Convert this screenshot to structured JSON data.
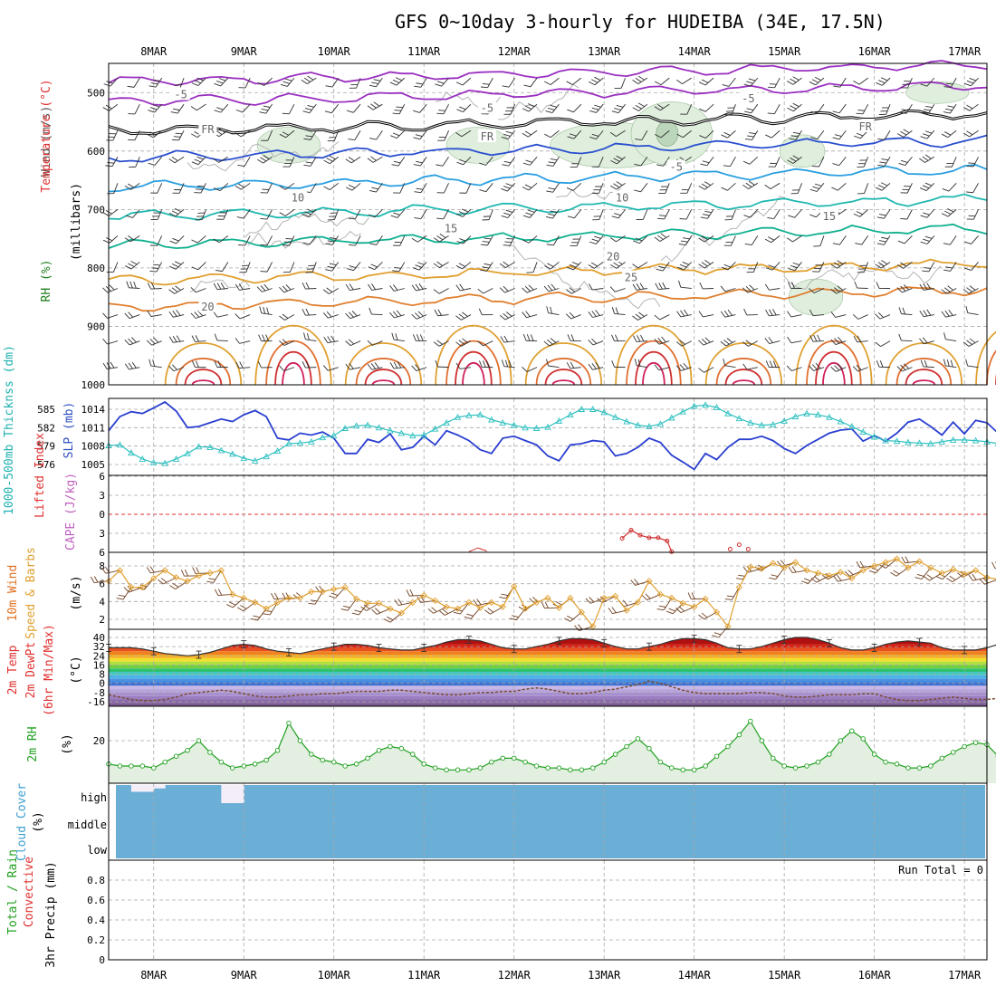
{
  "title": "GFS 0~10day 3-hourly for HUDEIBA (34E, 17.5N)",
  "date_labels": [
    "8MAR",
    "9MAR",
    "10MAR",
    "11MAR",
    "12MAR",
    "13MAR",
    "14MAR",
    "15MAR",
    "16MAR",
    "17MAR"
  ],
  "run_total_label": "Run Total = 0",
  "colors": {
    "wind_label": "#505050",
    "temperature_label": "#e03030",
    "rh_label": "#208020",
    "thickness_label": "#20b0b0",
    "slp_label": "#2040d0",
    "lifted_label": "#e03030",
    "cape_label": "#c060c0",
    "wind10_label": "#e07020",
    "speed_label": "#e0a030",
    "temp2m_label": "#e03030",
    "dewpt_label": "#e03030",
    "rh2m_label": "#20a020",
    "cloud_label": "#40a0d0",
    "precip_label": "#e03030",
    "cloud_fill": "#6baed6",
    "cloud_clear": "#f3eef8",
    "slp_line": "#2a3fd0",
    "thickness_line": "#30c0c0",
    "speed_line": "#e0a030",
    "rh_line": "#20a020",
    "rh_fill": "#e3efe0"
  },
  "panels": {
    "upper": {
      "label_wind": "Wind (m/s)",
      "label_temperature": "Temperature (°C)",
      "label_rh": "RH (%)",
      "ylabel": "(millibars)",
      "ticks": [
        "500",
        "600",
        "700",
        "800",
        "900",
        "1000"
      ],
      "isotherm_labels": [
        {
          "text": "-5",
          "p": 505,
          "day": 0.3
        },
        {
          "text": "-5",
          "p": 528,
          "day": 3.7
        },
        {
          "text": "-5",
          "p": 512,
          "day": 6.6
        },
        {
          "text": "FR",
          "p": 565,
          "day": 0.6
        },
        {
          "text": "FR",
          "p": 577,
          "day": 3.7
        },
        {
          "text": "FR",
          "p": 560,
          "day": 7.9
        },
        {
          "text": "-5",
          "p": 629,
          "day": 5.8
        },
        {
          "text": "10",
          "p": 682,
          "day": 1.6
        },
        {
          "text": "10",
          "p": 682,
          "day": 5.2
        },
        {
          "text": "15",
          "p": 734,
          "day": 3.3
        },
        {
          "text": "15",
          "p": 713,
          "day": 7.5
        },
        {
          "text": "20",
          "p": 782,
          "day": 5.1
        },
        {
          "text": "25",
          "p": 818,
          "day": 5.3
        },
        {
          "text": "20",
          "p": 868,
          "day": 0.6
        }
      ]
    },
    "thickness_slp": {
      "label_thickness": "1000-500mb Thicknss (dm)",
      "label_slp": "SLP (mb)",
      "left_ticks": [
        "585",
        "582",
        "579",
        "576"
      ],
      "right_ticks": [
        "1014",
        "1011",
        "1008",
        "1005"
      ]
    },
    "instability": {
      "label_lifted": "Lifted Index",
      "label_cape": "CAPE (J/kg)",
      "ticks": [
        "6",
        "3",
        "0",
        "3",
        "6"
      ]
    },
    "wind10": {
      "label_wind": "10m Wind",
      "label_speed": "Speed & Barbs",
      "label_unit": "(m/s)",
      "ticks": [
        "8",
        "6",
        "4",
        "2"
      ]
    },
    "temp2m": {
      "label_temp": "2m Temp",
      "label_dewpt": "2m DewPt",
      "label_minmax": "(6hr Min/Max)",
      "label_unit": "(°C)",
      "ticks": [
        "40",
        "32",
        "24",
        "16",
        "8",
        "0",
        "-8",
        "-16"
      ]
    },
    "rh2m": {
      "label": "2m RH",
      "label_unit": "(%)",
      "ticks": [
        "20"
      ]
    },
    "cloud": {
      "label": "Cloud Cover",
      "label_unit": "(%)",
      "levels": [
        "high",
        "middle",
        "low"
      ]
    },
    "precip": {
      "label_total": "Total / Rain",
      "label_convective": "Convective",
      "label_precip": "3hr Precip (mm)",
      "ticks": [
        "0.8",
        "0.6",
        "0.4",
        "0.2",
        "0"
      ]
    }
  },
  "chart_data": [
    {
      "type": "line",
      "title": "Sea level pressure and 1000-500mb thickness",
      "x_unit": "days from 8MAR 00Z (3-hourly steps)",
      "x_start": -0.5,
      "x_step": 0.125,
      "series": [
        {
          "name": "SLP (mb)",
          "values": [
            1010.5,
            1012.8,
            1013.6,
            1013.3,
            1014.2,
            1015.2,
            1013.7,
            1011.0,
            1011.2,
            1011.8,
            1012.4,
            1012.0,
            1013.1,
            1013.8,
            1012.8,
            1009.3,
            1009.0,
            1010.1,
            1009.8,
            1010.3,
            1009.3,
            1006.8,
            1006.8,
            1009.1,
            1008.6,
            1010.0,
            1007.4,
            1007.8,
            1009.6,
            1008.2,
            1010.5,
            1009.8,
            1008.9,
            1007.4,
            1006.8,
            1009.3,
            1009.6,
            1008.9,
            1008.2,
            1006.4,
            1005.6,
            1008.2,
            1008.4,
            1008.9,
            1008.7,
            1006.4,
            1006.8,
            1007.8,
            1009.3,
            1008.6,
            1006.5,
            1005.4,
            1004.2,
            1006.8,
            1005.8,
            1007.8,
            1009.1,
            1009.1,
            1009.6,
            1008.9,
            1007.6,
            1006.8,
            1008.1,
            1009.1,
            1010.1,
            1010.6,
            1010.8,
            1008.8,
            1009.7,
            1008.8,
            1010.1,
            1011.9,
            1012.4,
            1011.2,
            1009.8,
            1011.9,
            1010.0,
            1012.2,
            1011.8,
            1010.1,
            1010.6,
            1009.0,
            1010.8,
            1011.2
          ]
        },
        {
          "name": "1000-500mb Thickness (dm)",
          "values": [
            579.1,
            579.2,
            577.9,
            576.9,
            576.3,
            576.2,
            576.9,
            577.8,
            578.9,
            578.8,
            578.3,
            577.7,
            577.0,
            576.6,
            577.3,
            578.2,
            579.4,
            579.5,
            579.7,
            580.4,
            580.7,
            581.9,
            582.3,
            582.4,
            582.0,
            581.5,
            581.1,
            580.7,
            580.8,
            581.8,
            582.8,
            583.7,
            584.0,
            584.1,
            583.3,
            582.8,
            582.4,
            582.0,
            581.9,
            582.1,
            583.1,
            584.1,
            585.0,
            585.0,
            584.5,
            583.7,
            583.0,
            582.4,
            582.2,
            582.6,
            583.6,
            584.6,
            585.5,
            585.7,
            585.3,
            584.3,
            583.5,
            582.8,
            582.4,
            582.5,
            583.1,
            583.8,
            584.3,
            584.1,
            583.7,
            583.0,
            582.2,
            581.3,
            580.5,
            579.9,
            579.8,
            579.6,
            579.5,
            579.4,
            579.7,
            580.0,
            580.0,
            579.9,
            579.7,
            579.4,
            579.5,
            579.9,
            579.9,
            580.2
          ]
        }
      ]
    },
    {
      "type": "line",
      "title": "10m wind speed (m/s)",
      "x_unit": "days from 8MAR 00Z (3-hourly steps)",
      "x_start": -0.5,
      "x_step": 0.125,
      "series": [
        {
          "name": "Speed",
          "values": [
            6.3,
            7.5,
            5.6,
            5.6,
            6.6,
            7.5,
            6.7,
            6.3,
            6.9,
            7.2,
            7.5,
            4.8,
            4.4,
            3.9,
            3.2,
            3.9,
            4.4,
            4.4,
            5.1,
            5.1,
            5.4,
            5.6,
            4.3,
            3.8,
            3.8,
            3.2,
            2.7,
            3.9,
            4.7,
            4.1,
            3.4,
            3.2,
            3.9,
            3.3,
            3.9,
            3.4,
            5.7,
            3.2,
            3.9,
            4.4,
            3.3,
            4.4,
            2.8,
            1.2,
            4.4,
            4.6,
            3.0,
            3.9,
            6.3,
            4.8,
            4.4,
            3.8,
            3.4,
            4.3,
            2.8,
            1.2,
            5.6,
            7.9,
            7.7,
            8.3,
            7.8,
            8.4,
            7.5,
            7.2,
            6.9,
            7.3,
            6.6,
            7.5,
            8.0,
            8.4,
            8.8,
            7.8,
            8.5,
            7.8,
            7.2,
            7.6,
            7.1,
            7.5,
            6.7,
            6.5,
            7.8,
            7.3,
            8.0,
            6.2
          ]
        }
      ]
    },
    {
      "type": "line",
      "title": "2m temperature and dew point (°C)",
      "x_unit": "days from 8MAR 00Z (3-hourly steps)",
      "x_start": -0.5,
      "x_step": 0.125,
      "series": [
        {
          "name": "2m Temp",
          "values": [
            31,
            31,
            31,
            30,
            28,
            26,
            25,
            24,
            25,
            27,
            30,
            33,
            34,
            33,
            30,
            28,
            27,
            26,
            28,
            30,
            32,
            34,
            34,
            33,
            31,
            30,
            29,
            29,
            31,
            33,
            36,
            38,
            38,
            37,
            34,
            31,
            30,
            30,
            32,
            34,
            37,
            39,
            39,
            38,
            35,
            32,
            30,
            30,
            32,
            34,
            37,
            39,
            39,
            38,
            35,
            31,
            30,
            30,
            32,
            35,
            38,
            40,
            40,
            38,
            35,
            31,
            29,
            29,
            31,
            34,
            36,
            37,
            36,
            35,
            31,
            29,
            29,
            29,
            31,
            34,
            36,
            37,
            36,
            34
          ]
        },
        {
          "name": "2m DewPt",
          "values": [
            -10,
            -12,
            -14,
            -15,
            -15,
            -14,
            -12,
            -9,
            -8,
            -7,
            -6,
            -7,
            -9,
            -11,
            -12,
            -12,
            -11,
            -10,
            -10,
            -9,
            -9,
            -8,
            -7,
            -7,
            -7,
            -6,
            -6,
            -7,
            -8,
            -9,
            -10,
            -10,
            -9,
            -8,
            -8,
            -7,
            -7,
            -5,
            -4,
            -5,
            -7,
            -9,
            -9,
            -8,
            -6,
            -5,
            -3,
            -1,
            2,
            0,
            -3,
            -6,
            -8,
            -9,
            -9,
            -9,
            -9,
            -8,
            -8,
            -9,
            -11,
            -12,
            -12,
            -11,
            -10,
            -10,
            -10,
            -9,
            -9,
            -12,
            -14,
            -15,
            -15,
            -14,
            -13,
            -12,
            -13,
            -14,
            -14,
            -13,
            -12,
            -11,
            -10,
            -9
          ]
        }
      ]
    },
    {
      "type": "line",
      "title": "2m relative humidity (%)",
      "x_unit": "days from 8MAR 00Z (3-hourly steps)",
      "x_start": -0.5,
      "x_step": 0.125,
      "series": [
        {
          "name": "2m RH",
          "values": [
            8,
            7,
            7,
            7,
            6,
            9,
            12,
            15,
            20,
            14,
            9,
            6,
            7,
            8,
            10,
            15,
            29,
            20,
            13,
            10,
            9,
            7,
            8,
            11,
            15,
            17,
            16,
            13,
            8,
            6,
            5,
            5,
            5,
            6,
            9,
            11,
            11,
            9,
            7,
            6,
            6,
            5,
            5,
            6,
            9,
            13,
            17,
            21,
            16,
            9,
            6,
            5,
            5,
            7,
            12,
            17,
            23,
            30,
            20,
            11,
            7,
            6,
            7,
            9,
            13,
            20,
            25,
            21,
            13,
            9,
            8,
            6,
            6,
            7,
            11,
            14,
            17,
            19,
            18,
            12,
            8,
            6,
            5,
            5
          ]
        }
      ]
    },
    {
      "type": "heatmap",
      "title": "Cloud cover, high level (%)",
      "x_unit": "days from 8MAR 00Z (3-hourly steps)",
      "x_start": -0.5,
      "x_step": 0.125,
      "high": [
        100,
        100,
        70,
        70,
        85,
        100,
        100,
        100,
        100,
        100,
        20,
        20,
        100,
        100,
        100,
        100,
        100,
        100,
        100,
        100,
        100,
        100,
        100,
        100,
        100,
        100,
        100,
        100,
        100,
        100,
        100,
        100,
        100,
        100,
        100,
        100,
        100,
        100,
        100,
        100,
        100,
        100,
        100,
        100,
        100,
        100,
        100,
        100,
        100,
        100,
        100,
        100,
        100,
        100,
        100,
        100,
        100,
        100,
        100,
        100,
        100,
        100,
        100,
        100,
        100,
        100,
        100,
        100,
        100,
        100,
        100,
        100,
        100,
        100,
        100,
        100,
        100,
        100,
        100,
        100,
        100,
        100,
        100,
        100
      ]
    },
    {
      "type": "bar",
      "title": "3hr precipitation (mm)",
      "ylim": [
        0,
        1
      ],
      "run_total": 0
    }
  ]
}
